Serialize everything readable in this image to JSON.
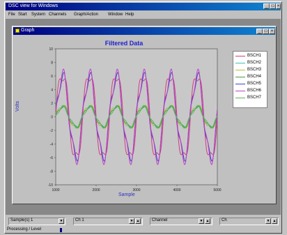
{
  "app": {
    "title": "DSC view for Windows",
    "menu": [
      "File",
      "Start",
      "System",
      "Channels",
      "Graph/Action",
      "Window",
      "Help"
    ]
  },
  "graph_window": {
    "title": "Graph"
  },
  "chart_data": {
    "type": "line",
    "title": "Filtered Data",
    "xlabel": "Sample",
    "ylabel": "Volts",
    "x_ticks": [
      "1000",
      "2000",
      "3000",
      "4000",
      "5000"
    ],
    "xlim": [
      1000,
      5000
    ],
    "ylim": [
      -10,
      10
    ],
    "series": [
      {
        "name": "BSCH1",
        "color": "#d04080",
        "amplitude": 7.6,
        "offset": 0
      },
      {
        "name": "BSCH2",
        "color": "#40c0c0",
        "amplitude": 1.9,
        "offset": 0
      },
      {
        "name": "BSCH3",
        "color": "#c0c040",
        "amplitude": 2.0,
        "offset": 0
      },
      {
        "name": "BSCH4",
        "color": "#40a040",
        "amplitude": 1.8,
        "offset": 0
      },
      {
        "name": "BSCH5",
        "color": "#4040d0",
        "amplitude": 7.0,
        "offset": 0
      },
      {
        "name": "BSCH6",
        "color": "#c040c0",
        "amplitude": 7.3,
        "offset": 0
      },
      {
        "name": "BSCH7",
        "color": "#60b060",
        "amplitude": 1.7,
        "offset": 0
      }
    ],
    "cycles": 6,
    "legend_position": "right",
    "grid": false
  },
  "bottom_panels": [
    {
      "label": "Sample(s) 1"
    },
    {
      "label": "Ch 1"
    },
    {
      "label": "Channel"
    },
    {
      "label": "Ch"
    }
  ],
  "status": {
    "text": "Processing / Level"
  }
}
